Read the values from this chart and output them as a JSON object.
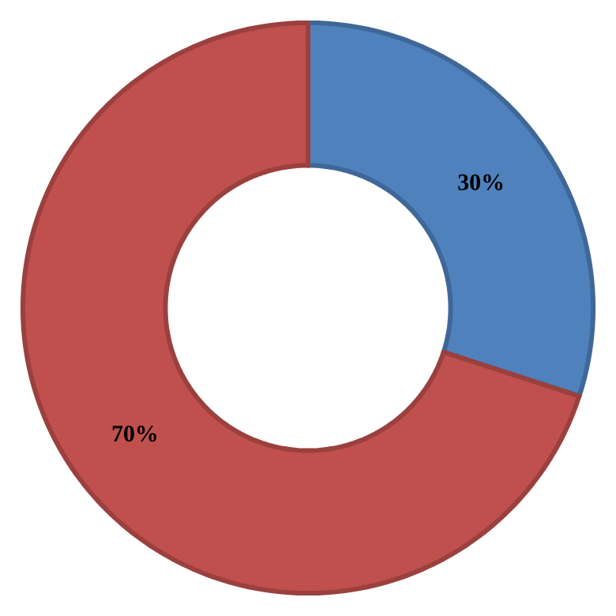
{
  "chart_data": {
    "type": "donut",
    "categories": [
      null,
      null
    ],
    "values": [
      30,
      70
    ],
    "colors": [
      "#4f81bd",
      "#c0504d"
    ],
    "value_labels": [
      "30%",
      "70%"
    ]
  }
}
